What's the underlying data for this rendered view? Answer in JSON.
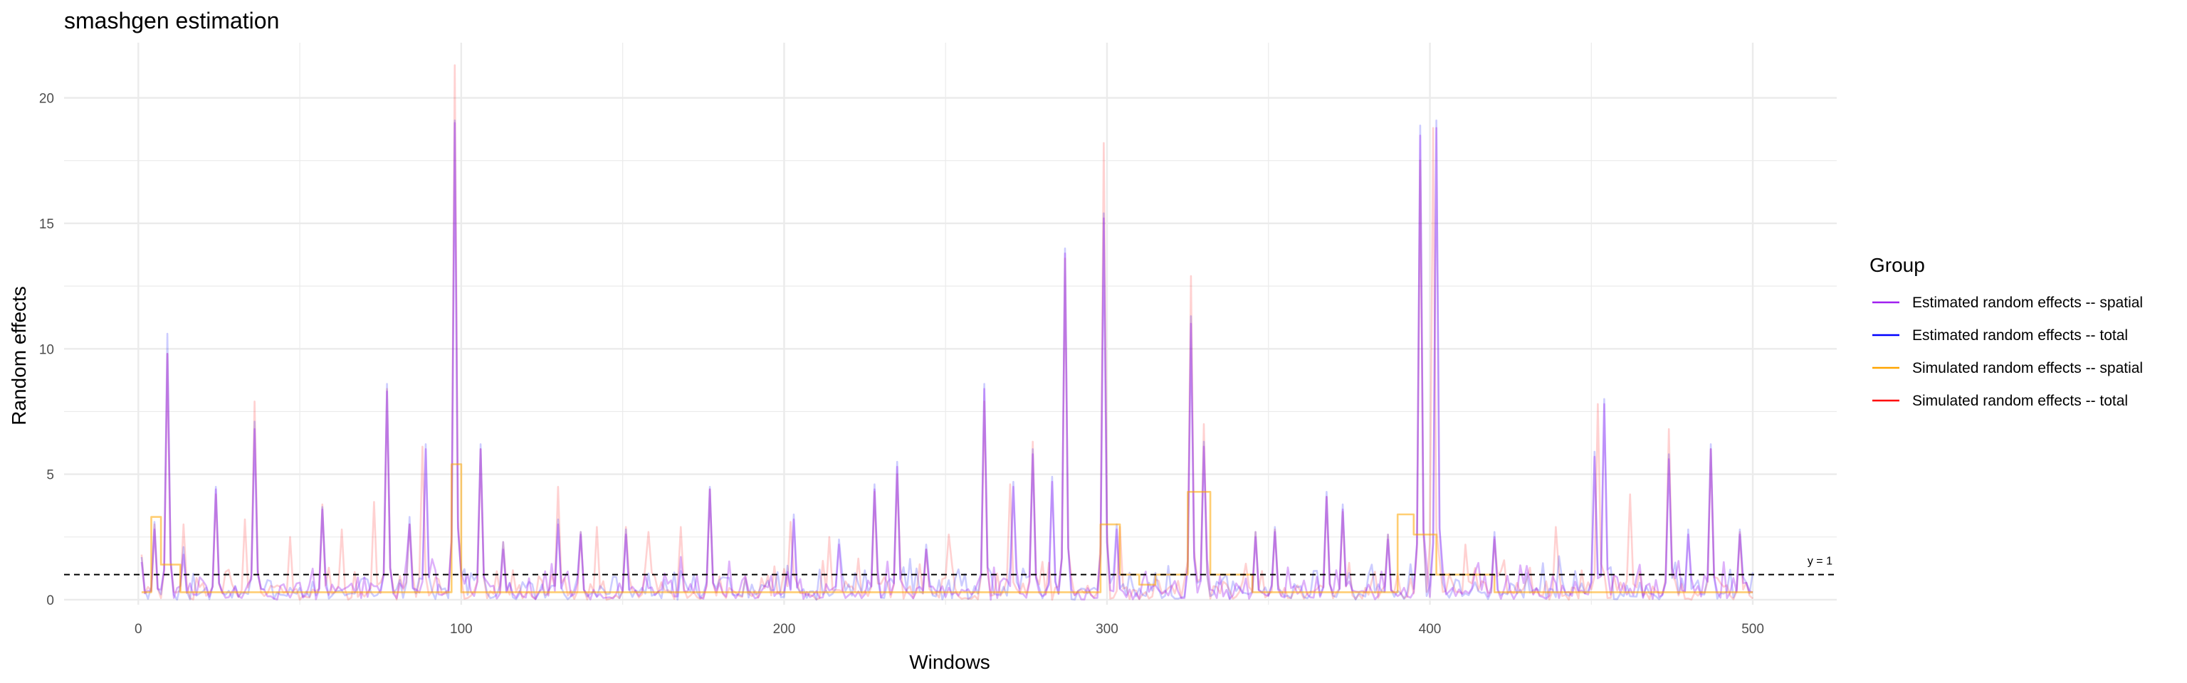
{
  "chart_data": {
    "type": "line",
    "title": "smashgen estimation",
    "xlabel": "Windows",
    "ylabel": "Random effects",
    "xlim": [
      -23,
      526
    ],
    "ylim": [
      -0.2,
      22.2
    ],
    "x_ticks": [
      0,
      100,
      200,
      300,
      400,
      500
    ],
    "y_ticks": [
      0,
      5,
      10,
      15,
      20
    ],
    "grid": true,
    "legend": {
      "title": "Group",
      "placement": "right",
      "entries": [
        {
          "label": "Estimated random effects -- spatial",
          "color": "#a020f0"
        },
        {
          "label": "Estimated random effects -- total",
          "color": "#0000ff"
        },
        {
          "label": "Simulated random effects -- spatial",
          "color": "#ffa500"
        },
        {
          "label": "Simulated random effects -- total",
          "color": "#ff0000"
        }
      ]
    },
    "reference_line": {
      "y": 1,
      "label": "y = 1",
      "style": "dashed"
    },
    "x_range": [
      1,
      500
    ],
    "series": [
      {
        "name": "Simulated random effects -- total",
        "color": "#ff0000",
        "opacity": 0.18,
        "peaks": [
          [
            1,
            1.8
          ],
          [
            5,
            3.0
          ],
          [
            9,
            9.8
          ],
          [
            14,
            3.0
          ],
          [
            24,
            4.2
          ],
          [
            33,
            3.2
          ],
          [
            36,
            7.9
          ],
          [
            47,
            2.5
          ],
          [
            57,
            3.8
          ],
          [
            63,
            2.8
          ],
          [
            73,
            3.9
          ],
          [
            77,
            8.4
          ],
          [
            84,
            3.0
          ],
          [
            88,
            6.1
          ],
          [
            98,
            21.3
          ],
          [
            106,
            6.0
          ],
          [
            113,
            2.3
          ],
          [
            130,
            4.5
          ],
          [
            137,
            2.7
          ],
          [
            142,
            2.9
          ],
          [
            151,
            2.9
          ],
          [
            158,
            2.7
          ],
          [
            168,
            2.9
          ],
          [
            177,
            4.4
          ],
          [
            188,
            0.9
          ],
          [
            202,
            3.1
          ],
          [
            214,
            2.5
          ],
          [
            228,
            4.3
          ],
          [
            235,
            5.0
          ],
          [
            244,
            2.0
          ],
          [
            251,
            2.6
          ],
          [
            262,
            7.9
          ],
          [
            270,
            4.6
          ],
          [
            277,
            6.3
          ],
          [
            287,
            13.6
          ],
          [
            299,
            18.2
          ],
          [
            304,
            2.9
          ],
          [
            326,
            12.9
          ],
          [
            330,
            7.0
          ],
          [
            346,
            2.7
          ],
          [
            352,
            2.8
          ],
          [
            368,
            4.1
          ],
          [
            373,
            3.5
          ],
          [
            387,
            2.6
          ],
          [
            397,
            17.5
          ],
          [
            401,
            18.8
          ],
          [
            411,
            2.2
          ],
          [
            420,
            2.4
          ],
          [
            439,
            2.9
          ],
          [
            452,
            7.8
          ],
          [
            462,
            4.2
          ],
          [
            474,
            6.8
          ],
          [
            487,
            6.0
          ],
          [
            496,
            2.7
          ]
        ]
      },
      {
        "name": "Estimated random effects -- total",
        "color": "#0000ff",
        "opacity": 0.2,
        "peaks": [
          [
            1,
            1.7
          ],
          [
            5,
            3.1
          ],
          [
            9,
            10.6
          ],
          [
            14,
            2.1
          ],
          [
            24,
            4.5
          ],
          [
            36,
            7.1
          ],
          [
            57,
            3.7
          ],
          [
            77,
            8.6
          ],
          [
            84,
            3.3
          ],
          [
            89,
            6.2
          ],
          [
            98,
            19.1
          ],
          [
            106,
            6.2
          ],
          [
            113,
            2.3
          ],
          [
            130,
            3.2
          ],
          [
            137,
            2.7
          ],
          [
            151,
            2.8
          ],
          [
            177,
            4.5
          ],
          [
            203,
            3.4
          ],
          [
            217,
            2.4
          ],
          [
            228,
            4.6
          ],
          [
            235,
            5.5
          ],
          [
            244,
            2.2
          ],
          [
            262,
            8.6
          ],
          [
            271,
            4.7
          ],
          [
            277,
            6.0
          ],
          [
            283,
            4.9
          ],
          [
            287,
            14.0
          ],
          [
            299,
            15.4
          ],
          [
            303,
            3.0
          ],
          [
            326,
            11.3
          ],
          [
            330,
            6.3
          ],
          [
            346,
            2.7
          ],
          [
            352,
            2.9
          ],
          [
            368,
            4.3
          ],
          [
            373,
            3.8
          ],
          [
            387,
            2.6
          ],
          [
            397,
            18.9
          ],
          [
            402,
            19.1
          ],
          [
            420,
            2.7
          ],
          [
            451,
            5.9
          ],
          [
            454,
            8.0
          ],
          [
            474,
            5.8
          ],
          [
            480,
            2.8
          ],
          [
            487,
            6.2
          ],
          [
            496,
            2.8
          ]
        ]
      },
      {
        "name": "Estimated random effects -- spatial",
        "color": "#a020f0",
        "opacity": 0.35,
        "peaks": [
          [
            1,
            1.5
          ],
          [
            5,
            2.8
          ],
          [
            9,
            9.8
          ],
          [
            14,
            1.8
          ],
          [
            24,
            4.4
          ],
          [
            36,
            6.8
          ],
          [
            57,
            3.6
          ],
          [
            77,
            8.3
          ],
          [
            84,
            3.0
          ],
          [
            89,
            6.0
          ],
          [
            98,
            19.0
          ],
          [
            106,
            6.0
          ],
          [
            113,
            2.0
          ],
          [
            130,
            3.0
          ],
          [
            137,
            2.6
          ],
          [
            151,
            2.6
          ],
          [
            177,
            4.4
          ],
          [
            203,
            3.2
          ],
          [
            217,
            2.2
          ],
          [
            228,
            4.4
          ],
          [
            235,
            5.3
          ],
          [
            244,
            2.0
          ],
          [
            262,
            8.4
          ],
          [
            271,
            4.5
          ],
          [
            277,
            5.8
          ],
          [
            283,
            4.7
          ],
          [
            287,
            13.8
          ],
          [
            299,
            15.2
          ],
          [
            303,
            2.8
          ],
          [
            326,
            11.0
          ],
          [
            330,
            6.1
          ],
          [
            346,
            2.5
          ],
          [
            352,
            2.7
          ],
          [
            368,
            4.1
          ],
          [
            373,
            3.6
          ],
          [
            387,
            2.4
          ],
          [
            397,
            18.5
          ],
          [
            402,
            18.8
          ],
          [
            420,
            2.5
          ],
          [
            451,
            5.7
          ],
          [
            454,
            7.8
          ],
          [
            474,
            5.6
          ],
          [
            480,
            2.6
          ],
          [
            487,
            6.0
          ],
          [
            496,
            2.6
          ]
        ]
      },
      {
        "name": "Simulated random effects -- spatial",
        "color": "#ffa500",
        "opacity": 0.55,
        "step_segments": [
          [
            1,
            4,
            0.3
          ],
          [
            4,
            7,
            3.3
          ],
          [
            7,
            13,
            1.4
          ],
          [
            13,
            97,
            0.3
          ],
          [
            97,
            100,
            5.4
          ],
          [
            100,
            182,
            0.3
          ],
          [
            182,
            200,
            0.3
          ],
          [
            200,
            298,
            0.3
          ],
          [
            298,
            304,
            3.0
          ],
          [
            304,
            310,
            1.0
          ],
          [
            310,
            315,
            0.6
          ],
          [
            315,
            325,
            1.0
          ],
          [
            325,
            332,
            4.3
          ],
          [
            332,
            345,
            1.0
          ],
          [
            345,
            390,
            0.3
          ],
          [
            390,
            395,
            3.4
          ],
          [
            395,
            402,
            2.6
          ],
          [
            402,
            420,
            1.0
          ],
          [
            420,
            500,
            0.3
          ]
        ]
      }
    ]
  }
}
